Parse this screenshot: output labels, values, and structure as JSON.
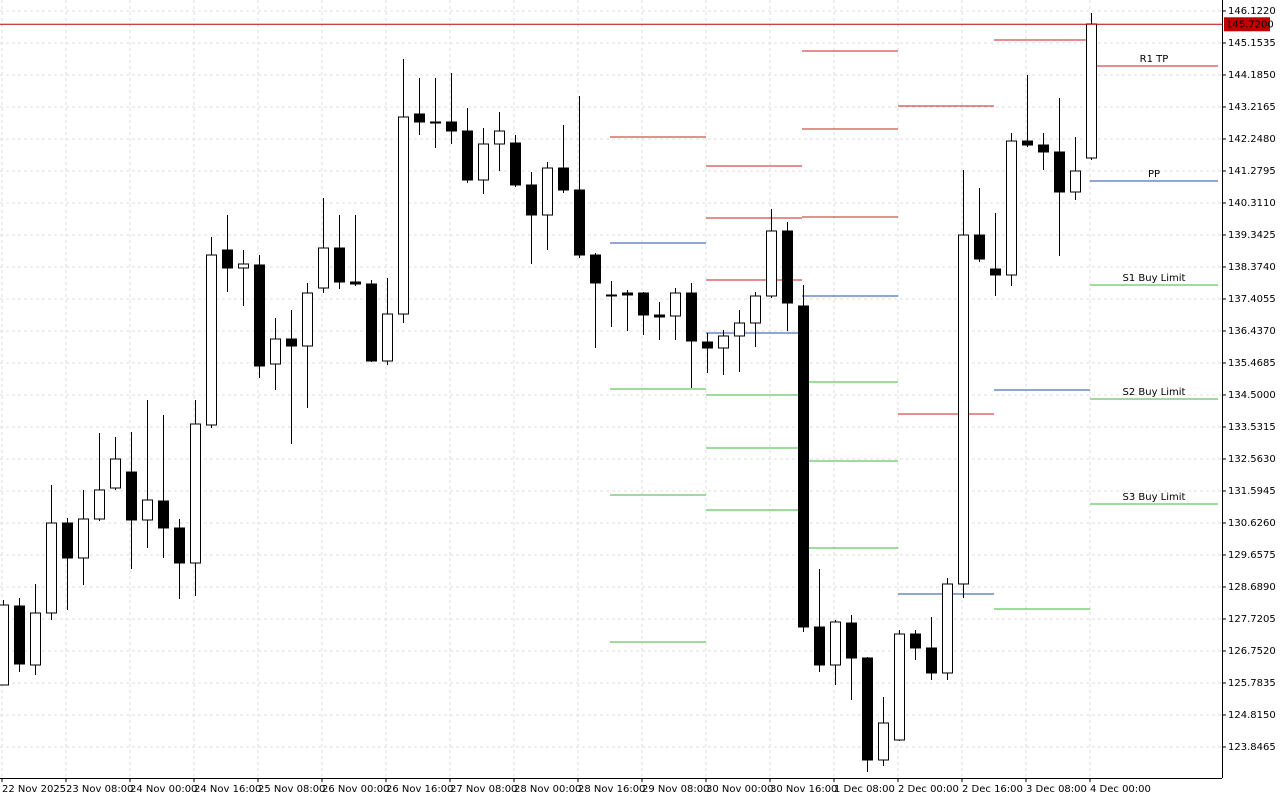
{
  "chart_data": {
    "type": "candlestick",
    "categories": [
      "22 Nov 2025",
      null,
      null,
      null,
      "23 Nov 08:00",
      null,
      null,
      null,
      "24 Nov 00:00",
      null,
      null,
      null,
      "24 Nov 16:00",
      null,
      null,
      null,
      "25 Nov 08:00",
      null,
      null,
      null,
      "26 Nov 00:00",
      null,
      null,
      null,
      "26 Nov 16:00",
      null,
      null,
      null,
      "27 Nov 08:00",
      null,
      null,
      null,
      "28 Nov 00:00",
      null,
      null,
      null,
      "28 Nov 16:00",
      null,
      null,
      null,
      "29 Nov 08:00",
      null,
      null,
      null,
      "30 Nov 00:00",
      null,
      null,
      null,
      "30 Nov 16:00",
      null,
      null,
      null,
      "1 Dec 08:00",
      null,
      null,
      null,
      "2 Dec 00:00",
      null,
      null,
      null,
      "2 Dec 16:00",
      null,
      null,
      null,
      "3 Dec 08:00",
      null,
      null,
      null,
      "4 Dec 00:00"
    ],
    "open": [
      125.723,
      128.114,
      126.328,
      127.902,
      130.626,
      129.567,
      130.747,
      131.685,
      132.169,
      130.717,
      131.292,
      130.475,
      129.415,
      133.592,
      138.888,
      138.344,
      138.435,
      135.438,
      136.195,
      135.983,
      137.738,
      138.949,
      137.92,
      137.859,
      135.529,
      136.951,
      143.005,
      142.763,
      142.763,
      142.49,
      141.007,
      142.097,
      142.127,
      140.856,
      139.948,
      141.37,
      140.704,
      138.737,
      137.527,
      137.587,
      137.587,
      136.921,
      136.891,
      137.587,
      136.104,
      135.922,
      136.286,
      136.679,
      137.496,
      139.464,
      137.194,
      127.478,
      126.328,
      127.599,
      126.54,
      123.453,
      124.058,
      127.266,
      126.843,
      126.086,
      128.78,
      139.342,
      138.313,
      138.132,
      142.187,
      142.066,
      141.855,
      140.644,
      141.673
    ],
    "high": [
      128.295,
      128.356,
      128.78,
      131.776,
      130.777,
      131.625,
      133.35,
      133.229,
      133.38,
      134.349,
      133.895,
      130.747,
      134.349,
      139.282,
      139.948,
      138.888,
      138.737,
      136.83,
      137.073,
      137.89,
      140.462,
      139.948,
      139.948,
      137.981,
      138.041,
      144.669,
      144.094,
      144.094,
      144.246,
      143.186,
      142.581,
      143.065,
      142.369,
      141.249,
      141.552,
      142.672,
      143.549,
      138.798,
      137.95,
      137.678,
      137.617,
      137.315,
      137.738,
      137.89,
      136.376,
      136.467,
      137.073,
      137.617,
      140.129,
      139.736,
      137.829,
      129.234,
      127.69,
      127.841,
      126.57,
      125.36,
      127.387,
      127.387,
      127.781,
      128.961,
      141.31,
      140.765,
      140.008,
      142.43,
      144.185,
      142.43,
      143.489,
      142.309,
      146.062
    ],
    "low": [
      125.723,
      126.116,
      126.025,
      127.69,
      127.993,
      128.749,
      130.686,
      131.625,
      129.234,
      129.869,
      129.567,
      128.326,
      128.416,
      133.501,
      137.617,
      137.194,
      135.014,
      134.651,
      133.017,
      134.106,
      137.587,
      137.708,
      137.799,
      135.499,
      135.408,
      136.679,
      142.369,
      141.976,
      142.097,
      140.916,
      140.583,
      141.28,
      140.795,
      138.465,
      138.888,
      140.614,
      138.646,
      135.922,
      136.558,
      136.437,
      136.316,
      136.165,
      136.165,
      134.712,
      135.166,
      135.105,
      135.196,
      135.953,
      137.436,
      136.437,
      127.327,
      126.116,
      125.723,
      125.269,
      123.089,
      123.271,
      124.028,
      126.479,
      125.874,
      125.874,
      128.356,
      138.525,
      137.496,
      137.799,
      142.006,
      141.31,
      138.707,
      140.402,
      141.612
    ],
    "close": [
      128.144,
      126.358,
      127.902,
      130.626,
      129.567,
      130.747,
      131.625,
      132.563,
      130.717,
      131.322,
      130.475,
      129.415,
      133.622,
      138.737,
      138.344,
      138.465,
      135.378,
      136.195,
      135.983,
      137.587,
      138.949,
      137.92,
      137.859,
      135.529,
      136.951,
      142.914,
      142.763,
      142.732,
      142.49,
      141.007,
      142.097,
      142.49,
      140.856,
      139.948,
      141.37,
      140.704,
      138.737,
      137.89,
      137.527,
      137.527,
      136.921,
      136.861,
      137.587,
      136.134,
      135.922,
      136.286,
      136.679,
      137.496,
      139.464,
      137.284,
      127.478,
      126.328,
      127.63,
      126.54,
      123.453,
      124.573,
      127.266,
      126.843,
      126.086,
      128.78,
      139.342,
      138.616,
      138.132,
      142.187,
      142.066,
      141.855,
      140.644,
      141.28,
      145.729
    ],
    "colors": {
      "up": "#ffffff",
      "down": "#000000",
      "wick": "#000000"
    },
    "ylim": [
      122.908,
      146.455
    ],
    "yticks": [
      {
        "value": 146.122,
        "label": "146.1220"
      },
      {
        "value": 145.1535,
        "label": "145.1535"
      },
      {
        "value": 144.185,
        "label": "144.1850"
      },
      {
        "value": 143.2165,
        "label": "143.2165"
      },
      {
        "value": 142.248,
        "label": "142.2480"
      },
      {
        "value": 141.2795,
        "label": "141.2795"
      },
      {
        "value": 140.311,
        "label": "140.3110"
      },
      {
        "value": 139.3425,
        "label": "139.3425"
      },
      {
        "value": 138.374,
        "label": "138.3740"
      },
      {
        "value": 137.4055,
        "label": "137.4055"
      },
      {
        "value": 136.437,
        "label": "136.4370"
      },
      {
        "value": 135.4685,
        "label": "135.4685"
      },
      {
        "value": 134.5,
        "label": "134.5000"
      },
      {
        "value": 133.5315,
        "label": "133.5315"
      },
      {
        "value": 132.563,
        "label": "132.5630"
      },
      {
        "value": 131.5945,
        "label": "131.5945"
      },
      {
        "value": 130.626,
        "label": "130.6260"
      },
      {
        "value": 129.6575,
        "label": "129.6575"
      },
      {
        "value": 128.689,
        "label": "128.6890"
      },
      {
        "value": 127.7205,
        "label": "127.7205"
      },
      {
        "value": 126.752,
        "label": "126.7520"
      },
      {
        "value": 125.7835,
        "label": "125.7835"
      },
      {
        "value": 124.815,
        "label": "124.8150"
      },
      {
        "value": 123.8465,
        "label": "123.8465"
      }
    ],
    "grid": true,
    "current_price": {
      "value": 145.72,
      "label": "145.7200"
    },
    "current_price_color": "#c00000",
    "level_colors": {
      "resistance": "#cc1f1f",
      "pivot": "#1f4fa6",
      "support": "#3cb83c"
    },
    "sessions": [
      {
        "x": [
          38,
          44
        ],
        "resistance": [
          142.309
        ],
        "pivot": 139.1,
        "support": [
          134.682,
          131.473,
          127.024
        ]
      },
      {
        "x": [
          44,
          50
        ],
        "resistance": [
          141.431,
          139.857,
          137.981
        ],
        "pivot": 136.376,
        "support": [
          134.5,
          132.896,
          131.019
        ]
      },
      {
        "x": [
          50,
          56
        ],
        "resistance": [
          144.911,
          142.551,
          139.887
        ],
        "pivot": 137.496,
        "support": [
          134.893,
          132.502,
          129.869
        ]
      },
      {
        "x": [
          56,
          62
        ],
        "resistance": [
          143.247,
          133.925
        ],
        "pivot": 128.477
      },
      {
        "x": [
          62,
          68
        ],
        "resistance": [
          145.244
        ],
        "pivot": 134.651,
        "support": [
          128.023
        ]
      },
      {
        "x": [
          68,
          76
        ],
        "resistance": [
          144.457
        ],
        "pivot": 140.977,
        "support": [
          137.829,
          134.379,
          131.201
        ],
        "resistance_labels": [
          "R1 TP"
        ],
        "pivot_label": "PP",
        "support_labels": [
          "S1 Buy Limit",
          "S2 Buy Limit",
          "S3 Buy Limit"
        ]
      }
    ]
  }
}
